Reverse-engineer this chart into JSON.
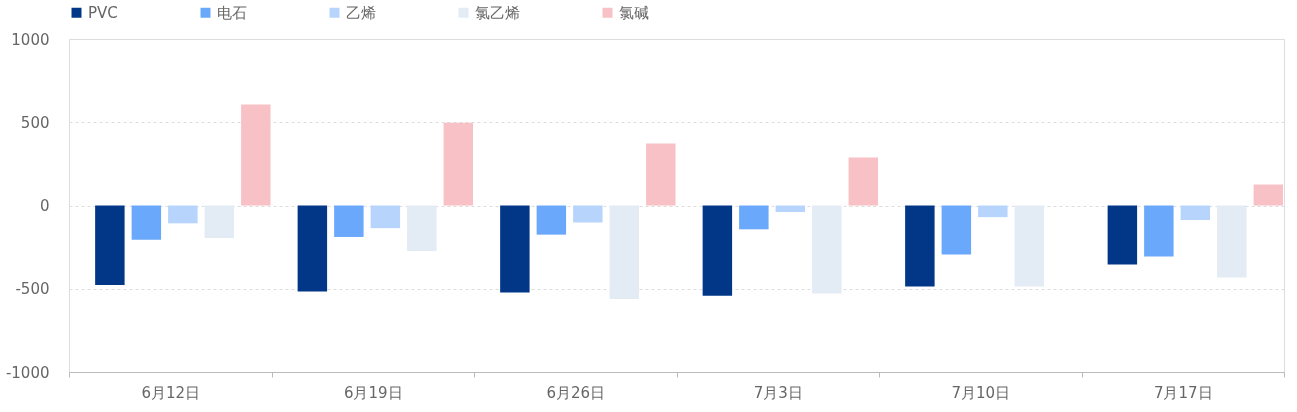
{
  "chart_data": {
    "type": "bar",
    "categories": [
      "6月12日",
      "6月19日",
      "6月26日",
      "7月3日",
      "7月10日",
      "7月17日"
    ],
    "series": [
      {
        "name": "PVC",
        "color": "#023787",
        "values": [
          -477,
          -517,
          -523,
          -542,
          -486,
          -354
        ]
      },
      {
        "name": "电石",
        "color": "#6aa8fc",
        "values": [
          -206,
          -189,
          -175,
          -143,
          -295,
          -306
        ]
      },
      {
        "name": "乙烯",
        "color": "#b7d4fc",
        "values": [
          -107,
          -136,
          -102,
          -39,
          -70,
          -87
        ]
      },
      {
        "name": "氯乙烯",
        "color": "#e3ebf5",
        "values": [
          -195,
          -274,
          -562,
          -528,
          -486,
          -433
        ]
      },
      {
        "name": "氯碱",
        "color": "#f7c1c6",
        "values": [
          607,
          497,
          373,
          289,
          null,
          126
        ]
      }
    ],
    "ylim": [
      -1000,
      1000
    ],
    "yticks": [
      -1000,
      -500,
      0,
      500,
      1000
    ],
    "grid": "y",
    "legend": "top"
  }
}
